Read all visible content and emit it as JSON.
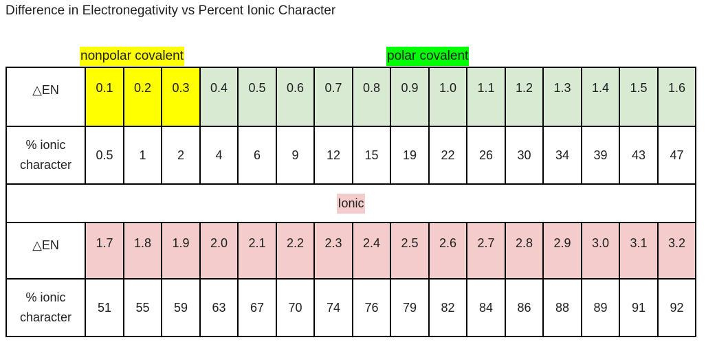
{
  "title": "Difference in Electronegativity vs Percent Ionic Character",
  "labels": {
    "nonpolar": "nonpolar covalent",
    "polar": "polar covalent",
    "ionic": "Ionic"
  },
  "colors": {
    "nonpolar": "#ffff00",
    "polar_label": "#00ff00",
    "polar_cells": "#d9ead3",
    "ionic": "#f4cccc",
    "border": "#000000"
  },
  "row_headers": {
    "en": "△EN",
    "ionic_line1": "% ionic",
    "ionic_line2": "character"
  },
  "covalent": {
    "en": [
      "0.1",
      "0.2",
      "0.3",
      "0.4",
      "0.5",
      "0.6",
      "0.7",
      "0.8",
      "0.9",
      "1.0",
      "1.1",
      "1.2",
      "1.3",
      "1.4",
      "1.5",
      "1.6"
    ],
    "pct": [
      "0.5",
      "1",
      "2",
      "4",
      "6",
      "9",
      "12",
      "15",
      "19",
      "22",
      "26",
      "30",
      "34",
      "39",
      "43",
      "47"
    ]
  },
  "ionic": {
    "en": [
      "1.7",
      "1.8",
      "1.9",
      "2.0",
      "2.1",
      "2.2",
      "2.3",
      "2.4",
      "2.5",
      "2.6",
      "2.7",
      "2.8",
      "2.9",
      "3.0",
      "3.1",
      "3.2"
    ],
    "pct": [
      "51",
      "55",
      "59",
      "63",
      "67",
      "70",
      "74",
      "76",
      "79",
      "82",
      "84",
      "86",
      "88",
      "89",
      "91",
      "92"
    ]
  }
}
